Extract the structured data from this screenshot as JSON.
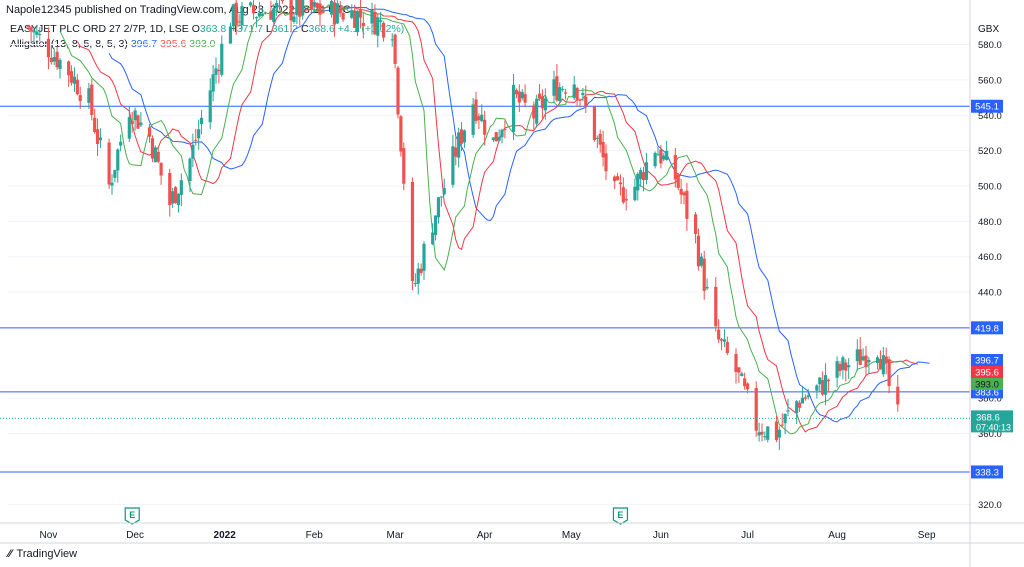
{
  "header": {
    "published": "Napole12345 published on TradingView.com, Aug 23, 2022 08:24 UTC"
  },
  "legend": {
    "symbol": "EASYJET PLC ORD 27 2/7P, 1D, LSE",
    "o_label": "O",
    "o": "363.8",
    "h_label": "H",
    "h": "371.7",
    "l_label": "L",
    "l": "361.2",
    "c_label": "C",
    "c": "368.6",
    "change": "+4.1 (+1.12%)",
    "indicator": "Alligator (13, 8, 5, 8, 5, 3)",
    "jaw": "396.7",
    "teeth": "395.6",
    "lips": "393.0"
  },
  "footer": {
    "brand": "TradingView"
  },
  "colors": {
    "up": "#26a69a",
    "down": "#ef5350",
    "jaw": "#2962ff",
    "teeth": "#f23645",
    "lips": "#4caf50",
    "hline": "#2962ff",
    "price_tag": "#26a69a"
  },
  "chart_data": {
    "type": "candlestick",
    "currency": "GBX",
    "ylim": [
      310,
      595
    ],
    "y_ticks": [
      "580.0",
      "560.0",
      "540.0",
      "520.0",
      "500.0",
      "480.0",
      "460.0",
      "440.0",
      "380.0",
      "360.0",
      "320.0"
    ],
    "x_ticks": [
      "Nov",
      "Dec",
      "2022",
      "Feb",
      "Mar",
      "Apr",
      "May",
      "Jun",
      "Jul",
      "Aug",
      "Sep"
    ],
    "horizontal_levels": [
      "545.1",
      "419.8",
      "383.6",
      "338.3"
    ],
    "price_labels": [
      {
        "value": "396.7",
        "color": "#2962ff"
      },
      {
        "value": "395.6",
        "color": "#f23645"
      },
      {
        "value": "393.0",
        "color": "#4caf50"
      }
    ],
    "last_price": {
      "value": "368.6",
      "countdown": "07:40:13"
    },
    "event_markers": [
      "E",
      "E"
    ],
    "close_series": [
      {
        "date": "2021-10-25",
        "close": 590
      },
      {
        "date": "2021-11-01",
        "close": 578
      },
      {
        "date": "2021-11-08",
        "close": 565
      },
      {
        "date": "2021-11-15",
        "close": 548
      },
      {
        "date": "2021-11-22",
        "close": 500
      },
      {
        "date": "2021-11-29",
        "close": 545
      },
      {
        "date": "2021-12-06",
        "close": 528
      },
      {
        "date": "2021-12-13",
        "close": 490
      },
      {
        "date": "2021-12-20",
        "close": 515
      },
      {
        "date": "2021-12-27",
        "close": 555
      },
      {
        "date": "2022-01-03",
        "close": 595
      },
      {
        "date": "2022-01-17",
        "close": 600
      },
      {
        "date": "2022-02-14",
        "close": 598
      },
      {
        "date": "2022-02-28",
        "close": 590
      },
      {
        "date": "2022-03-07",
        "close": 440
      },
      {
        "date": "2022-03-14",
        "close": 480
      },
      {
        "date": "2022-03-21",
        "close": 515
      },
      {
        "date": "2022-03-28",
        "close": 548
      },
      {
        "date": "2022-04-04",
        "close": 525
      },
      {
        "date": "2022-04-11",
        "close": 550
      },
      {
        "date": "2022-04-18",
        "close": 540
      },
      {
        "date": "2022-04-25",
        "close": 555
      },
      {
        "date": "2022-05-02",
        "close": 560
      },
      {
        "date": "2022-05-09",
        "close": 530
      },
      {
        "date": "2022-05-16",
        "close": 495
      },
      {
        "date": "2022-05-23",
        "close": 500
      },
      {
        "date": "2022-05-30",
        "close": 522
      },
      {
        "date": "2022-06-06",
        "close": 505
      },
      {
        "date": "2022-06-13",
        "close": 470
      },
      {
        "date": "2022-06-20",
        "close": 415
      },
      {
        "date": "2022-06-27",
        "close": 395
      },
      {
        "date": "2022-07-04",
        "close": 365
      },
      {
        "date": "2022-07-11",
        "close": 360
      },
      {
        "date": "2022-07-18",
        "close": 378
      },
      {
        "date": "2022-07-25",
        "close": 385
      },
      {
        "date": "2022-08-01",
        "close": 395
      },
      {
        "date": "2022-08-08",
        "close": 402
      },
      {
        "date": "2022-08-15",
        "close": 410
      },
      {
        "date": "2022-08-22",
        "close": 368.6
      }
    ]
  }
}
